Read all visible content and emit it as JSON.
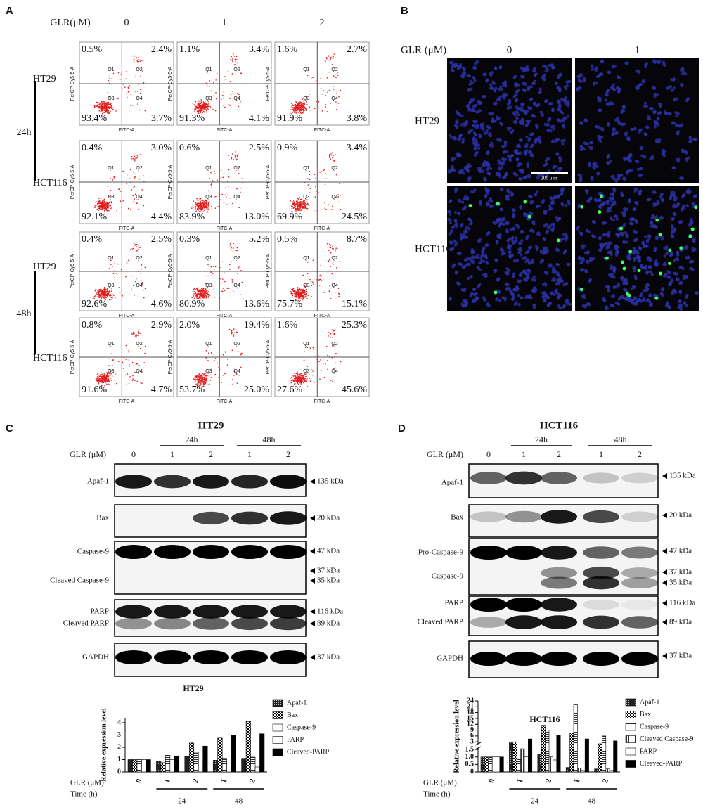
{
  "panel_a": {
    "label": "A",
    "dose_title": "GLR(μM)",
    "doses": [
      "0",
      "1",
      "2"
    ],
    "y_axis": "PerCP-Cy5-5-A",
    "x_axis": "FITC-A",
    "quadrants": [
      "Q1",
      "Q2",
      "Q3",
      "Q4"
    ],
    "groups": [
      {
        "time": "24h",
        "lines": [
          {
            "name": "HT29",
            "plots": [
              [
                "0.5%",
                "2.4%",
                "93.4%",
                "3.7%"
              ],
              [
                "1.1%",
                "3.4%",
                "91.3%",
                "4.1%"
              ],
              [
                "1.6%",
                "2.7%",
                "91.9%",
                "3.8%"
              ]
            ]
          },
          {
            "name": "HCT116",
            "plots": [
              [
                "0.4%",
                "3.0%",
                "92.1%",
                "4.4%"
              ],
              [
                "0.6%",
                "2.5%",
                "83.9%",
                "13.0%"
              ],
              [
                "0.9%",
                "3.4%",
                "69.9%",
                "24.5%"
              ]
            ]
          }
        ]
      },
      {
        "time": "48h",
        "lines": [
          {
            "name": "HT29",
            "plots": [
              [
                "0.4%",
                "2.5%",
                "92.6%",
                "4.6%"
              ],
              [
                "0.3%",
                "5.2%",
                "80.9%",
                "13.6%"
              ],
              [
                "0.5%",
                "8.7%",
                "75.7%",
                "15.1%"
              ]
            ]
          },
          {
            "name": "HCT116",
            "plots": [
              [
                "0.8%",
                "2.9%",
                "91.6%",
                "4.7%"
              ],
              [
                "2.0%",
                "19.4%",
                "53.7%",
                "25.0%"
              ],
              [
                "1.6%",
                "25.3%",
                "27.6%",
                "45.6%"
              ]
            ]
          }
        ]
      }
    ]
  },
  "panel_b": {
    "label": "B",
    "dose_title": "GLR (μM)",
    "doses": [
      "0",
      "1"
    ],
    "rows": [
      "HT29",
      "HCT116"
    ],
    "scale_bar": "200 μ m"
  },
  "panel_c": {
    "label": "C",
    "title": "HT29",
    "dose_title": "GLR (μM)",
    "doses": [
      "0",
      "1",
      "2",
      "1",
      "2"
    ],
    "times": [
      "24h",
      "48h"
    ],
    "blots": [
      {
        "labels": [
          "Apaf-1"
        ],
        "markers": [
          "135 kDa"
        ]
      },
      {
        "labels": [
          "Bax"
        ],
        "markers": [
          "20 kDa"
        ]
      },
      {
        "labels": [
          "Caspase-9",
          "Cleaved Caspase-9"
        ],
        "markers": [
          "47 kDa",
          "37 kDa",
          "35 kDa"
        ]
      },
      {
        "labels": [
          "PARP",
          "Cleaved PARP"
        ],
        "markers": [
          "116 kDa",
          "89 kDa"
        ]
      },
      {
        "labels": [
          "GAPDH"
        ],
        "markers": [
          "37 kDa"
        ]
      }
    ],
    "caption": "HT29"
  },
  "panel_d": {
    "label": "D",
    "title": "HCT116",
    "dose_title": "GLR (μM)",
    "doses": [
      "0",
      "1",
      "2",
      "1",
      "2"
    ],
    "times": [
      "24h",
      "48h"
    ],
    "blots": [
      {
        "labels": [
          "Apaf-1"
        ],
        "markers": [
          "135 kDa"
        ]
      },
      {
        "labels": [
          "Bax"
        ],
        "markers": [
          "20 kDa"
        ]
      },
      {
        "labels": [
          "Pro-Caspase-9",
          "Caspase-9"
        ],
        "markers": [
          "47 kDa",
          "37 kDa",
          "35 kDa"
        ]
      },
      {
        "labels": [
          "PARP",
          "Cleaved PARP"
        ],
        "markers": [
          "116 kDa",
          "89 kDa"
        ]
      },
      {
        "labels": [
          "GAPDH"
        ],
        "markers": [
          "37 kDa"
        ]
      }
    ],
    "caption": "HCT116"
  },
  "chart_data": [
    {
      "type": "bar",
      "y_label": "Relative expression level",
      "x_label": "GLR (μM)",
      "time_label": "Time (h)",
      "categories": [
        "0",
        "1",
        "2",
        "1",
        "2"
      ],
      "times": [
        "24",
        "48"
      ],
      "ylim": [
        0,
        4.4
      ],
      "yticks": [
        0,
        1,
        2,
        3,
        4
      ],
      "series": [
        {
          "name": "Apaf-1",
          "pattern": "grid",
          "values": [
            1,
            0.85,
            1.25,
            0.95,
            1.1
          ]
        },
        {
          "name": "Bax",
          "pattern": "checker",
          "values": [
            1,
            0.75,
            2.35,
            2.75,
            4.1
          ]
        },
        {
          "name": "Caspase-9",
          "pattern": "hlines",
          "values": [
            1,
            1.35,
            1.6,
            1.1,
            1.2
          ]
        },
        {
          "name": "PARP",
          "pattern": "white",
          "values": [
            1,
            1.0,
            0.9,
            0.7,
            0.4
          ]
        },
        {
          "name": "Cleaved-PARP",
          "pattern": "black",
          "values": [
            1,
            1.3,
            2.1,
            3.0,
            3.1
          ]
        }
      ]
    },
    {
      "type": "bar",
      "y_label": "Relative expression level",
      "x_label": "GLR (μM)",
      "time_label": "Time (h)",
      "categories": [
        "0",
        "1",
        "2",
        "1",
        "2"
      ],
      "times": [
        "24",
        "48"
      ],
      "ylim": [
        0,
        24
      ],
      "axis_break": [
        1.6,
        2
      ],
      "yticks": [
        0,
        0.5,
        {
          "value": 1,
          "label": "1.0"
        },
        1.5,
        3,
        6,
        9,
        12,
        15,
        18,
        21,
        24
      ],
      "series": [
        {
          "name": "Apaf-1",
          "pattern": "grid",
          "values": [
            1,
            3.0,
            1.2,
            0.3,
            0.2
          ]
        },
        {
          "name": "Bax",
          "pattern": "checker",
          "values": [
            1,
            3.0,
            11.5,
            7.5,
            2.0
          ]
        },
        {
          "name": "Caspase-9",
          "pattern": "hlines",
          "values": [
            1,
            0.85,
            9.0,
            22.0,
            6.0
          ]
        },
        {
          "name": "Cleaved Caspase-9",
          "pattern": "vlines",
          "values": [
            1,
            1.55,
            1.0,
            0.25,
            0.2
          ]
        },
        {
          "name": "PARP",
          "pattern": "white",
          "values": [
            1,
            1.0,
            0.8,
            0.1,
            0.1
          ]
        },
        {
          "name": "Cleaved-PARP",
          "pattern": "black",
          "values": [
            1,
            4.5,
            6.5,
            4.5,
            3.5
          ]
        }
      ]
    }
  ]
}
